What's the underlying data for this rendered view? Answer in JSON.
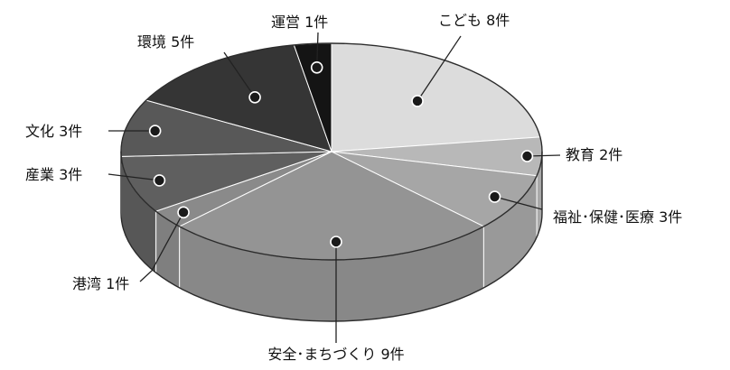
{
  "chart_data": {
    "type": "pie",
    "style": "3d",
    "categories": [
      "こども",
      "教育",
      "福祉・保健・医療",
      "安全・まちづくり",
      "港湾",
      "産業",
      "文化",
      "環境",
      "運営"
    ],
    "values": [
      8,
      2,
      3,
      9,
      1,
      3,
      3,
      5,
      1
    ],
    "labels": [
      "こども 8件",
      "教育 2件",
      "福祉･保健･医療 3件",
      "安全･まちづくり 9件",
      "港湾 1件",
      "産業 3件",
      "文化 3件",
      "環境 5件",
      "運営 1件"
    ],
    "colors": [
      "#dcdcdc",
      "#b8b8b8",
      "#a6a6a6",
      "#949494",
      "#8a8a8a",
      "#5f5f5f",
      "#585858",
      "#353535",
      "#141414"
    ],
    "unit": "件",
    "legend": "none"
  }
}
